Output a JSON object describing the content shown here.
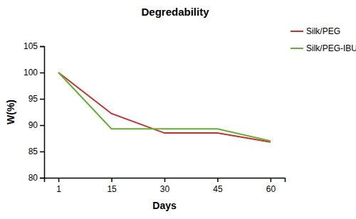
{
  "chart_data": {
    "type": "line",
    "title": "Degredability",
    "x_label": "Days",
    "y_label": "W(%)",
    "categories": [
      "1",
      "15",
      "30",
      "45",
      "60"
    ],
    "series": [
      {
        "name": "Silk/PEG",
        "color": "#d42a2a",
        "values": [
          100,
          92.2,
          88.5,
          88.5,
          86.8
        ]
      },
      {
        "name": "Silk/PEG-IBU",
        "color": "#5db52f",
        "values": [
          100,
          89.3,
          89.3,
          89.3,
          87.0
        ]
      }
    ],
    "ylim": [
      80,
      105
    ],
    "yticks": [
      80,
      85,
      90,
      95,
      100,
      105
    ],
    "grid": false,
    "legend": "right"
  }
}
